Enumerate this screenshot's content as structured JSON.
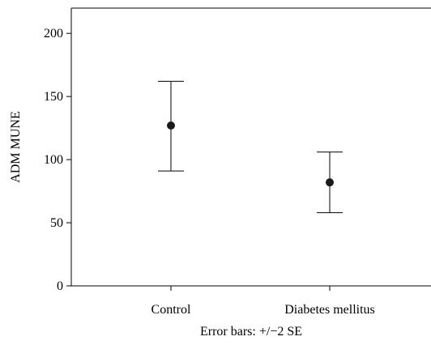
{
  "chart_data": {
    "type": "scatter",
    "categories": [
      "Control",
      "Diabetes mellitus"
    ],
    "means": [
      127,
      82
    ],
    "error_low": [
      91,
      58
    ],
    "error_high": [
      162,
      106
    ],
    "ylabel": "ADM MUNE",
    "xlabel": "Error bars: +/−2 SE",
    "ylim": [
      0,
      220
    ],
    "yticks": [
      0,
      50,
      100,
      150,
      200
    ],
    "grid": false,
    "colors": {
      "marker": "#1a1a1a",
      "axis": "#000000"
    }
  }
}
